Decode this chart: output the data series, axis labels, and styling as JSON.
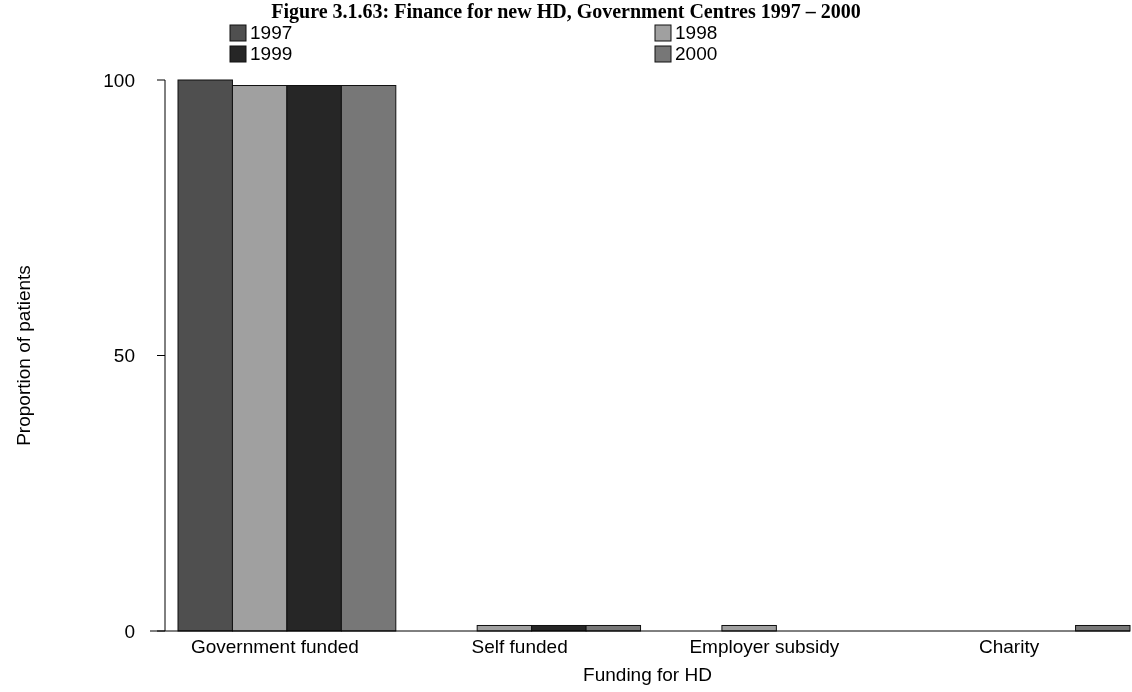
{
  "chart_data": {
    "type": "bar",
    "title": "Figure 3.1.63: Finance for new HD, Government Centres 1997 – 2000",
    "xlabel": "Funding for HD",
    "ylabel": "Proportion of patients",
    "categories": [
      "Government funded",
      "Self funded",
      "Employer subsidy",
      "Charity"
    ],
    "series": [
      {
        "name": "1997",
        "color": "#4f4f4f",
        "values": [
          100,
          0,
          0,
          0
        ]
      },
      {
        "name": "1998",
        "color": "#a0a0a0",
        "values": [
          99,
          1,
          1,
          0
        ]
      },
      {
        "name": "1999",
        "color": "#262626",
        "values": [
          99,
          1,
          0,
          0
        ]
      },
      {
        "name": "2000",
        "color": "#777777",
        "values": [
          99,
          1,
          0,
          1
        ]
      }
    ],
    "ylim": [
      0,
      100
    ],
    "yticks": [
      0,
      50,
      100
    ],
    "grid": false,
    "legend": "top"
  }
}
